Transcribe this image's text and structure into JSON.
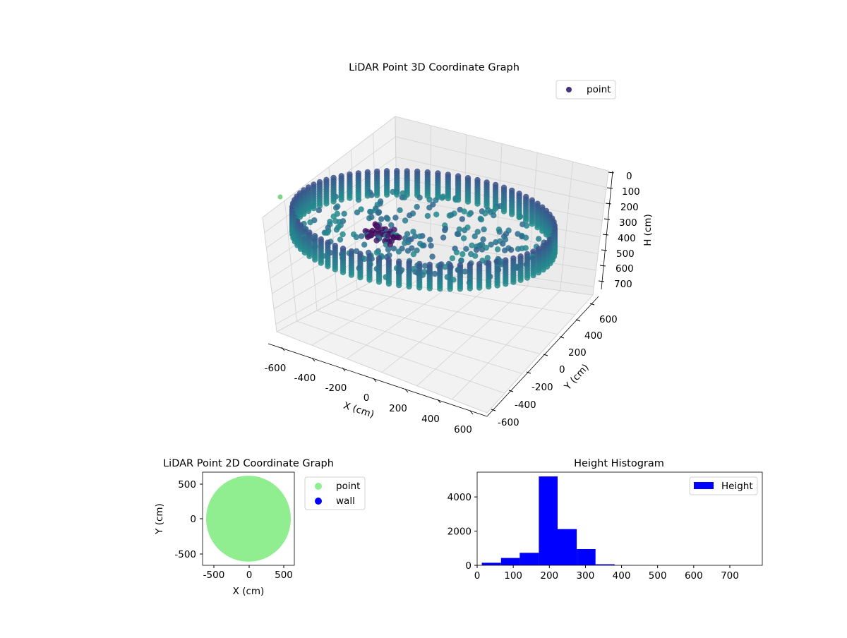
{
  "chart_data": [
    {
      "type": "scatter3d",
      "title": "LiDAR Point 3D Coordinate Graph",
      "xlabel": "X (cm)",
      "ylabel": "Y (cm)",
      "zlabel": "H (cm)",
      "x_ticks": [
        -600,
        -400,
        -200,
        0,
        200,
        400,
        600
      ],
      "y_ticks": [
        600,
        400,
        200,
        0,
        -200,
        -400,
        -600
      ],
      "z_ticks": [
        0,
        100,
        200,
        300,
        400,
        500,
        600,
        700
      ],
      "xlim": [
        -650,
        650
      ],
      "ylim": [
        -650,
        650
      ],
      "zlim": [
        0,
        750
      ],
      "z_inverted": true,
      "legend": [
        "point"
      ],
      "legend_position": "top-right",
      "colormap": "viridis",
      "grid": true,
      "series": [
        {
          "name": "point",
          "description": "circular wall ring of radius ~600 cm spanning heights ~150-300 cm, with scattered interior points and a dark cluster near the center top",
          "ring_radius": 600,
          "ring_h_range": [
            150,
            300
          ],
          "outlier": {
            "x": -650,
            "y": 650,
            "h": 750
          }
        }
      ]
    },
    {
      "type": "scatter",
      "title": "LiDAR Point 2D Coordinate Graph",
      "xlabel": "X (cm)",
      "ylabel": "Y (cm)",
      "x_ticks": [
        -500,
        0,
        500
      ],
      "y_ticks": [
        500,
        0,
        -500
      ],
      "xlim": [
        -650,
        650
      ],
      "ylim": [
        -650,
        650
      ],
      "legend": [
        "point",
        "wall"
      ],
      "legend_position": "right",
      "series": [
        {
          "name": "point",
          "color": "#90ee90",
          "shape": "filled disk",
          "radius": 600
        },
        {
          "name": "wall",
          "color": "#0000ff",
          "values": []
        }
      ]
    },
    {
      "type": "bar",
      "title": "Height Histogram",
      "legend": [
        "Height"
      ],
      "legend_position": "top-right",
      "x_ticks": [
        0,
        100,
        200,
        300,
        400,
        500,
        600,
        700
      ],
      "y_ticks": [
        0,
        2000,
        4000
      ],
      "xlim": [
        0,
        790
      ],
      "ylim": [
        0,
        5450
      ],
      "bar_color": "#0000ff",
      "bins": [
        {
          "x0": 13,
          "x1": 66,
          "count": 150
        },
        {
          "x0": 66,
          "x1": 118,
          "count": 430
        },
        {
          "x0": 118,
          "x1": 171,
          "count": 730
        },
        {
          "x0": 171,
          "x1": 223,
          "count": 5200
        },
        {
          "x0": 223,
          "x1": 276,
          "count": 2120
        },
        {
          "x0": 276,
          "x1": 328,
          "count": 950
        },
        {
          "x0": 328,
          "x1": 381,
          "count": 60
        },
        {
          "x0": 381,
          "x1": 433,
          "count": 8
        },
        {
          "x0": 433,
          "x1": 486,
          "count": 3
        },
        {
          "x0": 486,
          "x1": 538,
          "count": 2
        },
        {
          "x0": 538,
          "x1": 591,
          "count": 1
        },
        {
          "x0": 591,
          "x1": 643,
          "count": 1
        },
        {
          "x0": 643,
          "x1": 696,
          "count": 1
        },
        {
          "x0": 696,
          "x1": 748,
          "count": 1
        }
      ]
    }
  ]
}
